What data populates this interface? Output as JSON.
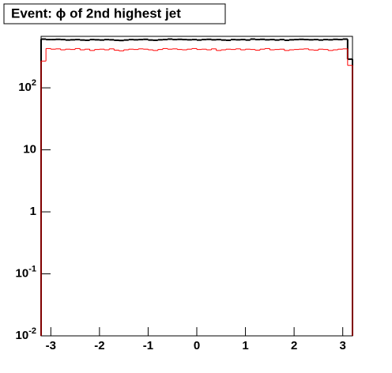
{
  "chart_data": {
    "type": "histogram",
    "title": "Event: ϕ of 2nd highest jet",
    "log_y": true,
    "bins": [
      -3.2,
      -3.1,
      -3,
      -2.9,
      -2.8,
      -2.7,
      -2.6,
      -2.5,
      -2.4,
      -2.3,
      -2.2,
      -2.1,
      -2,
      -1.9,
      -1.8,
      -1.7,
      -1.6,
      -1.5,
      -1.4,
      -1.3,
      -1.2,
      -1.1,
      -1,
      -0.9,
      -0.8,
      -0.7,
      -0.6,
      -0.5,
      -0.4,
      -0.3,
      -0.2,
      -0.1,
      0,
      0.1,
      0.2,
      0.3,
      0.4,
      0.5,
      0.6,
      0.7,
      0.8,
      0.9,
      1,
      1.1,
      1.2,
      1.3,
      1.4,
      1.5,
      1.6,
      1.7,
      1.8,
      1.9,
      2,
      2.1,
      2.2,
      2.3,
      2.4,
      2.5,
      2.6,
      2.7,
      2.8,
      2.9,
      3,
      3.1,
      3.2
    ],
    "series": [
      {
        "color": "#000000",
        "values": [
          610,
          600,
          600,
          605,
          600,
          590,
          595,
          600,
          590,
          585,
          600,
          595,
          590,
          600,
          595,
          585,
          580,
          590,
          600,
          595,
          600,
          605,
          590,
          585,
          595,
          600,
          610,
          600,
          605,
          600,
          595,
          600,
          590,
          600,
          605,
          595,
          600,
          590,
          585,
          600,
          595,
          600,
          590,
          610,
          600,
          605,
          595,
          600,
          590,
          600,
          585,
          595,
          600,
          605,
          600,
          595,
          600,
          590,
          600,
          595,
          605,
          600,
          610,
          290
        ]
      },
      {
        "color": "#ff0000",
        "values": [
          270,
          430,
          420,
          425,
          410,
          420,
          415,
          430,
          410,
          420,
          400,
          415,
          420,
          410,
          425,
          405,
          395,
          410,
          420,
          415,
          425,
          420,
          410,
          400,
          415,
          430,
          420,
          425,
          415,
          410,
          420,
          430,
          415,
          420,
          410,
          425,
          400,
          410,
          420,
          415,
          425,
          410,
          420,
          415,
          405,
          420,
          430,
          410,
          415,
          420,
          400,
          410,
          415,
          420,
          425,
          410,
          405,
          420,
          415,
          400,
          410,
          420,
          425,
          230
        ]
      }
    ],
    "xlim": [
      -3.2,
      3.2
    ],
    "xticks": [
      -3,
      -2,
      -1,
      0,
      1,
      2,
      3
    ],
    "ylim": [
      0.01,
      676
    ],
    "yticks": [
      {
        "value": 0.01,
        "label": "10",
        "exponent": "-2"
      },
      {
        "value": 0.1,
        "label": "10",
        "exponent": "-1"
      },
      1,
      10,
      {
        "value": 100,
        "label": "10",
        "exponent": "2"
      }
    ]
  }
}
